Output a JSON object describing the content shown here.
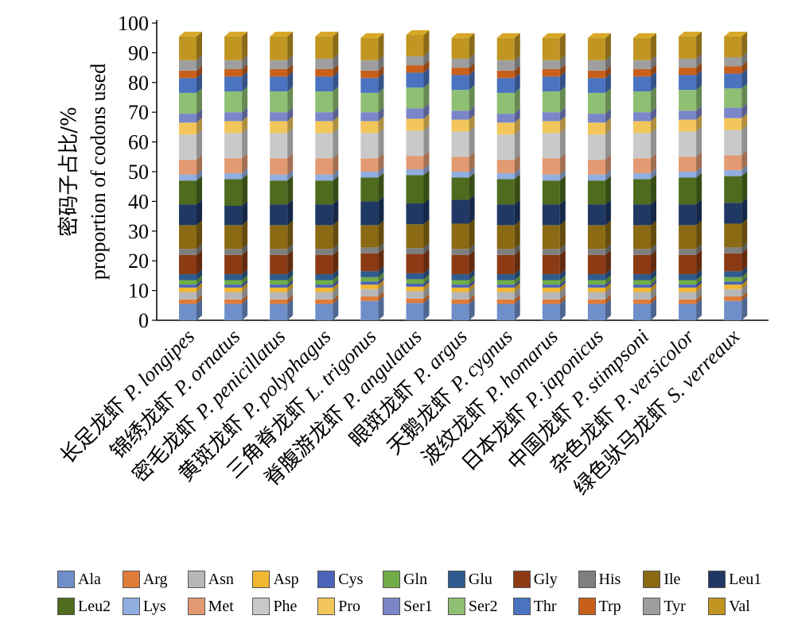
{
  "chart_data": {
    "type": "bar",
    "stacked": true,
    "three_d": true,
    "ylabel": "密码子占比/%\nproportion of codons used",
    "ylabel_cn": "密码子占比/%",
    "ylabel_en": "proportion of codons used",
    "ylim": [
      0,
      100
    ],
    "yticks": [
      0,
      10,
      20,
      30,
      40,
      50,
      60,
      70,
      80,
      90,
      100
    ],
    "categories": [
      {
        "cn": "长足龙虾 ",
        "latin": "P. longipes"
      },
      {
        "cn": "锦绣龙虾 ",
        "latin": "P. ornatus"
      },
      {
        "cn": "密毛龙虾 ",
        "latin": "P. penicillatus"
      },
      {
        "cn": "黄斑龙虾 ",
        "latin": "P. polyphagus"
      },
      {
        "cn": "三角脊龙虾 ",
        "latin": "L. trigonus"
      },
      {
        "cn": "脊腹游龙虾 ",
        "latin": "P. angulatus"
      },
      {
        "cn": "眼斑龙虾 ",
        "latin": "P. argus"
      },
      {
        "cn": "天鹅龙虾 ",
        "latin": "P. cygnus"
      },
      {
        "cn": "波纹龙虾 ",
        "latin": "P. homarus"
      },
      {
        "cn": "日本龙虾 ",
        "latin": "P. japonicus"
      },
      {
        "cn": "中国龙虾 ",
        "latin": "P. stimpsoni"
      },
      {
        "cn": "杂色龙虾 ",
        "latin": "P. versicolor"
      },
      {
        "cn": "绿色驮马龙虾 ",
        "latin": "S. verreaux"
      }
    ],
    "series": [
      {
        "name": "Ala",
        "color": "#6e8fc9",
        "values": [
          5.5,
          5.5,
          5.5,
          5.5,
          6.5,
          5.8,
          5.5,
          5.5,
          5.5,
          5.5,
          5.5,
          5.5,
          6.5
        ]
      },
      {
        "name": "Arg",
        "color": "#e07b39",
        "values": [
          1.5,
          1.5,
          1.5,
          1.5,
          1.5,
          1.5,
          1.5,
          1.5,
          1.5,
          1.5,
          1.5,
          1.5,
          1.5
        ]
      },
      {
        "name": "Asn",
        "color": "#b7b7b7",
        "values": [
          2.5,
          2.5,
          2.5,
          2.5,
          2.5,
          2.5,
          2.5,
          2.5,
          2.5,
          2.5,
          2.5,
          2.5,
          2.5
        ]
      },
      {
        "name": "Asp",
        "color": "#f2b731",
        "values": [
          1.5,
          1.5,
          1.5,
          1.5,
          1.5,
          1.5,
          1.5,
          1.5,
          1.5,
          1.5,
          1.5,
          1.5,
          1.5
        ]
      },
      {
        "name": "Cys",
        "color": "#4b63b8",
        "values": [
          1.0,
          1.0,
          1.0,
          1.0,
          1.0,
          1.0,
          1.0,
          1.0,
          1.0,
          1.0,
          1.0,
          1.0,
          1.0
        ]
      },
      {
        "name": "Gln",
        "color": "#70ad47",
        "values": [
          1.5,
          1.5,
          1.5,
          1.5,
          1.5,
          1.5,
          1.5,
          1.5,
          1.5,
          1.5,
          1.5,
          1.5,
          1.5
        ]
      },
      {
        "name": "Glu",
        "color": "#2f5b8f",
        "values": [
          2.0,
          2.0,
          2.0,
          2.0,
          2.0,
          2.0,
          2.0,
          2.0,
          2.0,
          2.0,
          2.0,
          2.0,
          2.0
        ]
      },
      {
        "name": "Gly",
        "color": "#8b3a14",
        "values": [
          6.5,
          6.5,
          6.5,
          6.5,
          6.0,
          6.5,
          6.5,
          6.5,
          6.5,
          6.5,
          6.5,
          6.5,
          6.0
        ]
      },
      {
        "name": "His",
        "color": "#7f7f7f",
        "values": [
          2.0,
          2.0,
          2.0,
          2.0,
          2.0,
          2.0,
          2.0,
          2.0,
          2.0,
          2.0,
          2.0,
          2.0,
          2.0
        ]
      },
      {
        "name": "Ile",
        "color": "#8b6a14",
        "values": [
          8.0,
          8.0,
          8.0,
          8.0,
          7.5,
          8.0,
          8.5,
          8.0,
          8.0,
          8.0,
          8.0,
          8.0,
          8.0
        ]
      },
      {
        "name": "Leu1",
        "color": "#1f3864",
        "values": [
          7.0,
          6.5,
          7.0,
          7.0,
          8.0,
          7.0,
          8.0,
          7.0,
          7.0,
          7.0,
          7.0,
          7.0,
          7.0
        ]
      },
      {
        "name": "Leu2",
        "color": "#4e6b1e",
        "values": [
          8.0,
          9.0,
          8.0,
          8.0,
          8.0,
          9.5,
          7.5,
          8.5,
          8.0,
          8.0,
          8.5,
          9.0,
          9.0
        ]
      },
      {
        "name": "Lys",
        "color": "#91aee0",
        "values": [
          2.0,
          2.0,
          2.0,
          2.0,
          2.0,
          2.0,
          2.0,
          2.0,
          2.0,
          2.0,
          2.0,
          2.0,
          2.0
        ]
      },
      {
        "name": "Met",
        "color": "#e39a72",
        "values": [
          5.0,
          5.0,
          5.5,
          5.5,
          4.5,
          4.5,
          5.0,
          4.5,
          5.5,
          5.0,
          5.0,
          5.0,
          5.0
        ]
      },
      {
        "name": "Phe",
        "color": "#c9c9c9",
        "values": [
          8.5,
          8.5,
          8.5,
          8.5,
          8.5,
          8.5,
          8.5,
          8.5,
          8.5,
          8.5,
          8.5,
          8.5,
          8.5
        ]
      },
      {
        "name": "Pro",
        "color": "#f2c65a",
        "values": [
          4.0,
          4.0,
          4.0,
          4.0,
          4.0,
          4.0,
          4.0,
          4.0,
          4.0,
          4.0,
          4.0,
          4.0,
          4.0
        ]
      },
      {
        "name": "Ser1",
        "color": "#7b86c9",
        "values": [
          3.0,
          3.0,
          3.0,
          3.0,
          3.0,
          3.5,
          3.0,
          3.0,
          3.0,
          3.0,
          3.0,
          3.0,
          3.5
        ]
      },
      {
        "name": "Ser2",
        "color": "#8fbf73",
        "values": [
          7.0,
          7.0,
          7.0,
          7.0,
          6.5,
          7.0,
          7.0,
          7.0,
          7.0,
          7.0,
          7.0,
          7.0,
          6.5
        ]
      },
      {
        "name": "Thr",
        "color": "#4a73c0",
        "values": [
          5.0,
          5.0,
          5.0,
          5.0,
          5.0,
          5.0,
          5.0,
          5.0,
          5.0,
          5.0,
          5.0,
          5.0,
          5.0
        ]
      },
      {
        "name": "Trp",
        "color": "#c8601c",
        "values": [
          2.5,
          2.5,
          2.5,
          2.5,
          2.5,
          2.5,
          2.5,
          2.5,
          2.5,
          2.5,
          2.5,
          2.5,
          2.5
        ]
      },
      {
        "name": "Tyr",
        "color": "#9e9e9e",
        "values": [
          3.5,
          3.0,
          3.0,
          3.5,
          3.5,
          3.0,
          3.0,
          3.5,
          3.0,
          3.5,
          3.0,
          3.0,
          3.0
        ]
      },
      {
        "name": "Val",
        "color": "#c09522",
        "values": [
          8.0,
          8.0,
          8.0,
          7.5,
          7.5,
          7.2,
          7.0,
          7.5,
          7.5,
          7.5,
          7.5,
          7.5,
          7.0
        ]
      }
    ]
  }
}
